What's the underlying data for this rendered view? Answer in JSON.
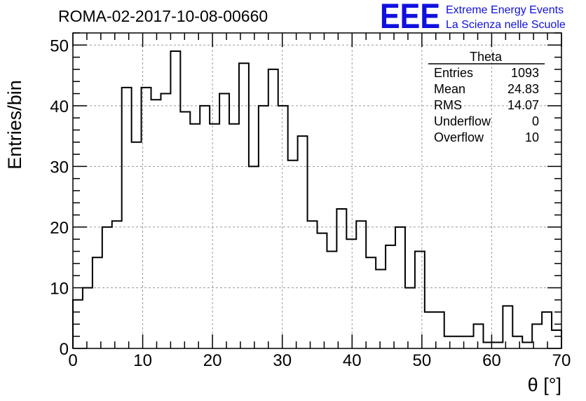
{
  "title": "ROMA-02-2017-10-08-00660",
  "logo": {
    "mark": "EEE",
    "line1": "Extreme Energy Events",
    "line2": "La Scienza nelle Scuole"
  },
  "stats": {
    "name": "Theta",
    "rows": [
      {
        "label": "Entries",
        "value": "1093"
      },
      {
        "label": "Mean",
        "value": "24.83"
      },
      {
        "label": "RMS",
        "value": "14.07"
      },
      {
        "label": "Underflow",
        "value": "0"
      },
      {
        "label": "Overflow",
        "value": "10"
      }
    ]
  },
  "chart_data": {
    "type": "histogram",
    "xlabel": "θ [°]",
    "ylabel": "Entries/bin",
    "xlim": [
      0,
      70
    ],
    "ylim": [
      0,
      52
    ],
    "bin_width": 1.4,
    "x_ticks": [
      0,
      10,
      20,
      30,
      40,
      50,
      60,
      70
    ],
    "y_ticks": [
      0,
      10,
      20,
      30,
      40,
      50
    ],
    "grid": true,
    "line_color": "#000000",
    "values": [
      8,
      10,
      15,
      20,
      21,
      43,
      34,
      43,
      41,
      42,
      49,
      39,
      37,
      40,
      37,
      42,
      37,
      47,
      30,
      40,
      46,
      40,
      31,
      35,
      21,
      19,
      16,
      23,
      18,
      21,
      15,
      13,
      17,
      20,
      10,
      16,
      6,
      6,
      2,
      2,
      2,
      4,
      1,
      1,
      7,
      2,
      1,
      4,
      6,
      3
    ]
  }
}
